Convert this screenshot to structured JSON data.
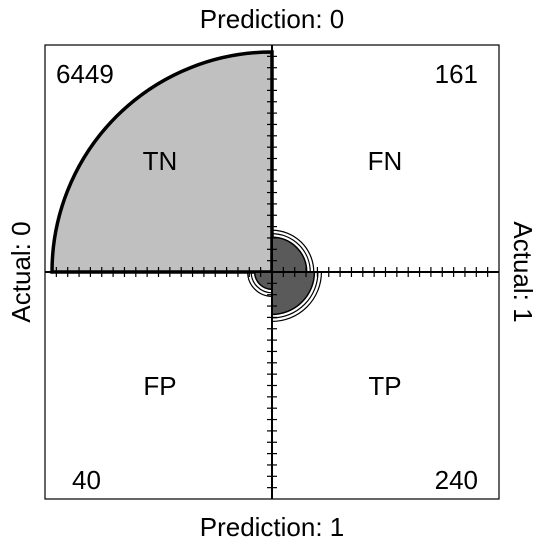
{
  "chart_data": {
    "type": "fourfold",
    "labels": {
      "top": "Prediction: 0",
      "bottom": "Prediction: 1",
      "left": "Actual: 0",
      "right": "Actual: 1"
    },
    "cells": [
      {
        "name": "TN",
        "count": 6449,
        "value_label": "6449",
        "quadrant": "top-left"
      },
      {
        "name": "FN",
        "count": 161,
        "value_label": "161",
        "quadrant": "top-right"
      },
      {
        "name": "FP",
        "count": 40,
        "value_label": "40",
        "quadrant": "bottom-left"
      },
      {
        "name": "TP",
        "count": 240,
        "value_label": "240",
        "quadrant": "bottom-right"
      }
    ],
    "colors": {
      "sector_fill": "#c0c0c0",
      "inner_circle_fill": "#5a5a5a",
      "frame": "#000000"
    },
    "grid": false
  }
}
